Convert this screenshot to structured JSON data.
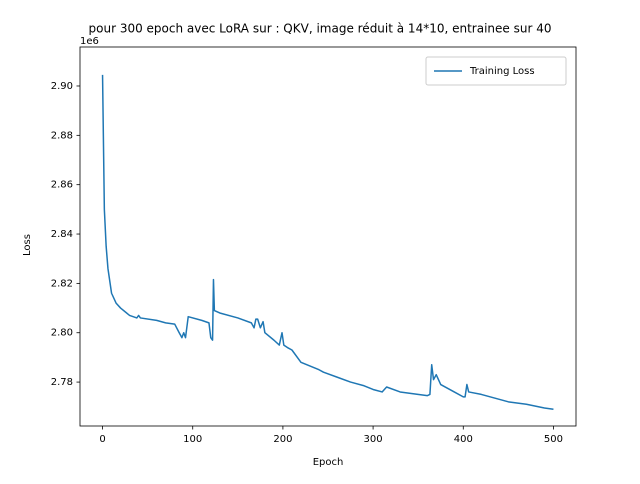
{
  "chart_data": {
    "type": "line",
    "title": "pour 300 epoch avec LoRA sur : QKV, image réduit à 14*10, entrainee sur 40",
    "x_label": "Epoch",
    "y_label": "Loss",
    "y_offset_label": "1e6",
    "xlim": [
      -25,
      525
    ],
    "xticks": [
      0,
      100,
      200,
      300,
      400,
      500
    ],
    "ylim": [
      2762200,
      2915800
    ],
    "yticks": [
      {
        "value": 2780000,
        "label": "2.78"
      },
      {
        "value": 2800000,
        "label": "2.80"
      },
      {
        "value": 2820000,
        "label": "2.82"
      },
      {
        "value": 2840000,
        "label": "2.84"
      },
      {
        "value": 2860000,
        "label": "2.86"
      },
      {
        "value": 2880000,
        "label": "2.88"
      },
      {
        "value": 2900000,
        "label": "2.90"
      }
    ],
    "legend": "upper right",
    "x": [
      0,
      2,
      4,
      6,
      10,
      15,
      20,
      30,
      38,
      40,
      42,
      60,
      70,
      80,
      85,
      88,
      90,
      92,
      95,
      110,
      118,
      120,
      122,
      123,
      124,
      130,
      150,
      165,
      168,
      170,
      172,
      175,
      178,
      180,
      190,
      196,
      199,
      201,
      205,
      210,
      220,
      240,
      245,
      260,
      275,
      290,
      300,
      310,
      315,
      330,
      360,
      363,
      365,
      367,
      370,
      375,
      390,
      400,
      402,
      404,
      406,
      420,
      450,
      470,
      490,
      500
    ],
    "series": [
      {
        "name": "Training Loss",
        "color": "#1f77b4",
        "values": [
          2904500,
          2850000,
          2835000,
          2826000,
          2816000,
          2812000,
          2810000,
          2807000,
          2806000,
          2807000,
          2806000,
          2805000,
          2804000,
          2803500,
          2800000,
          2798000,
          2800000,
          2798000,
          2806500,
          2805000,
          2804000,
          2798000,
          2797000,
          2821500,
          2809000,
          2808000,
          2806000,
          2804000,
          2802000,
          2805500,
          2805500,
          2802000,
          2804500,
          2800000,
          2797000,
          2795000,
          2800000,
          2795000,
          2794000,
          2793000,
          2788000,
          2785000,
          2784000,
          2782000,
          2780000,
          2778500,
          2777000,
          2776000,
          2778000,
          2776000,
          2774500,
          2775000,
          2787000,
          2781000,
          2783000,
          2779000,
          2776000,
          2774000,
          2774000,
          2779000,
          2776000,
          2775000,
          2772000,
          2771000,
          2769500,
          2769000
        ]
      }
    ]
  }
}
